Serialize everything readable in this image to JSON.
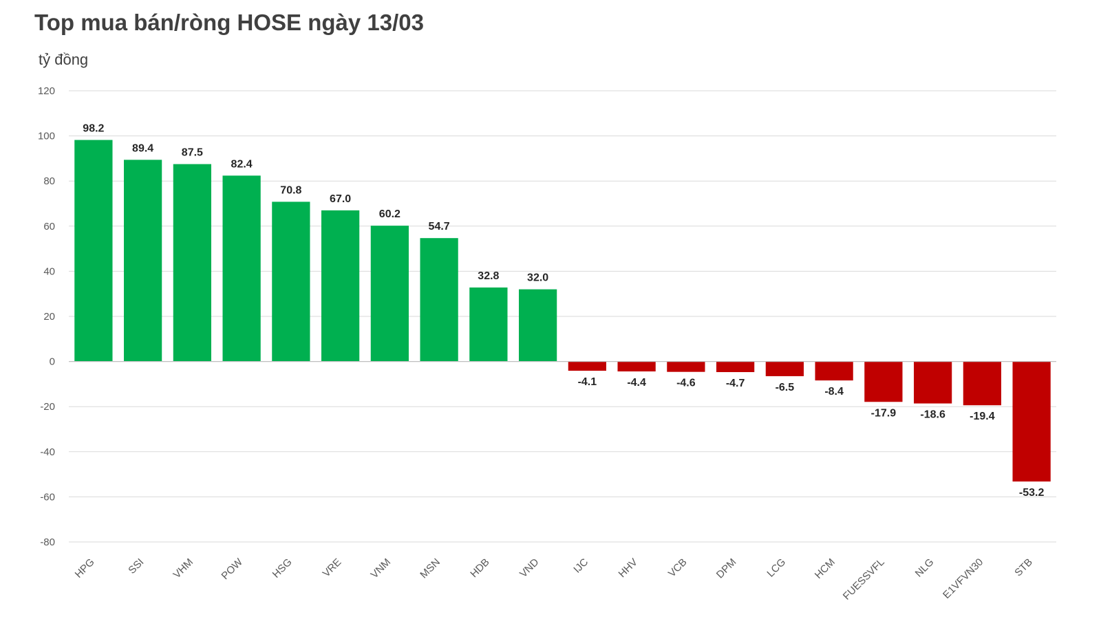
{
  "chart_data": {
    "type": "bar",
    "title": "Top mua bán/ròng HOSE ngày 13/03",
    "ylabel": "tỷ đồng",
    "xlabel": "",
    "ylim": [
      -80,
      120
    ],
    "yticks": [
      -80,
      -60,
      -40,
      -20,
      0,
      20,
      40,
      60,
      80,
      100,
      120
    ],
    "grid": true,
    "categories": [
      "HPG",
      "SSI",
      "VHM",
      "POW",
      "HSG",
      "VRE",
      "VNM",
      "MSN",
      "HDB",
      "VND",
      "IJC",
      "HHV",
      "VCB",
      "DPM",
      "LCG",
      "HCM",
      "FUESSVFL",
      "NLG",
      "E1VFVN30",
      "STB"
    ],
    "values": [
      98.2,
      89.4,
      87.5,
      82.4,
      70.8,
      67.0,
      60.2,
      54.7,
      32.8,
      32.0,
      -4.1,
      -4.4,
      -4.6,
      -4.7,
      -6.5,
      -8.4,
      -17.9,
      -18.6,
      -19.4,
      -53.2
    ],
    "value_labels": [
      "98.2",
      "89.4",
      "87.5",
      "82.4",
      "70.8",
      "67.0",
      "60.2",
      "54.7",
      "32.8",
      "32.0",
      "-4.1",
      "-4.4",
      "-4.6",
      "-4.7",
      "-6.5",
      "-8.4",
      "-17.9",
      "-18.6",
      "-19.4",
      "-53.2"
    ],
    "colors": {
      "positive": "#00b050",
      "negative": "#c00000",
      "grid": "#d9d9d9",
      "axis": "#bfbfbf"
    }
  }
}
